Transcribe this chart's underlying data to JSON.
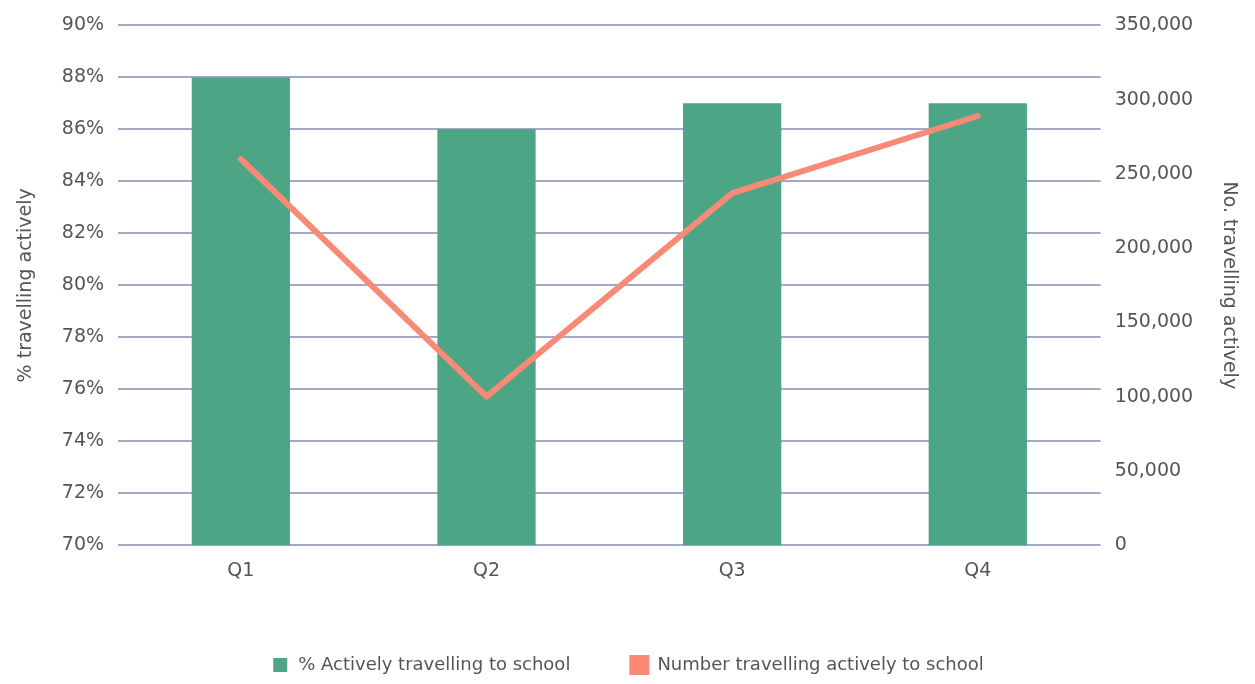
{
  "chart_data": {
    "type": "bar",
    "categories": [
      "Q1",
      "Q2",
      "Q3",
      "Q4"
    ],
    "ylabel": "% travelling actively",
    "y2label": "No. travelling actively",
    "series": [
      {
        "name": "% Actively travelling to school",
        "color": "#4ca585",
        "values": [
          88,
          86,
          87,
          87
        ]
      },
      {
        "name": "Number travelling actively to school",
        "type": "line",
        "axis": "y2",
        "color": "#f98a75",
        "values": [
          260000,
          100000,
          237000,
          289000
        ]
      }
    ],
    "ylim": [
      70,
      90
    ],
    "yticks": [
      {
        "value": 70,
        "label": "70%"
      },
      {
        "value": 72,
        "label": "72%"
      },
      {
        "value": 74,
        "label": "74%"
      },
      {
        "value": 76,
        "label": "76%"
      },
      {
        "value": 78,
        "label": "78%"
      },
      {
        "value": 80,
        "label": "80%"
      },
      {
        "value": 82,
        "label": "82%"
      },
      {
        "value": 84,
        "label": "84%"
      },
      {
        "value": 86,
        "label": "86%"
      },
      {
        "value": 88,
        "label": "88%"
      },
      {
        "value": 90,
        "label": "90%"
      }
    ],
    "y2lim": [
      0,
      350000
    ],
    "y2ticks": [
      {
        "value": 0,
        "label": "0"
      },
      {
        "value": 50000,
        "label": "50,000"
      },
      {
        "value": 100000,
        "label": "100,000"
      },
      {
        "value": 150000,
        "label": "150,000"
      },
      {
        "value": 200000,
        "label": "200,000"
      },
      {
        "value": 250000,
        "label": "250,000"
      },
      {
        "value": 300000,
        "label": "300,000"
      },
      {
        "value": 350000,
        "label": "350,000"
      }
    ],
    "grid": "y",
    "legend": "bottom",
    "marker": "none",
    "line_style": "solid"
  }
}
